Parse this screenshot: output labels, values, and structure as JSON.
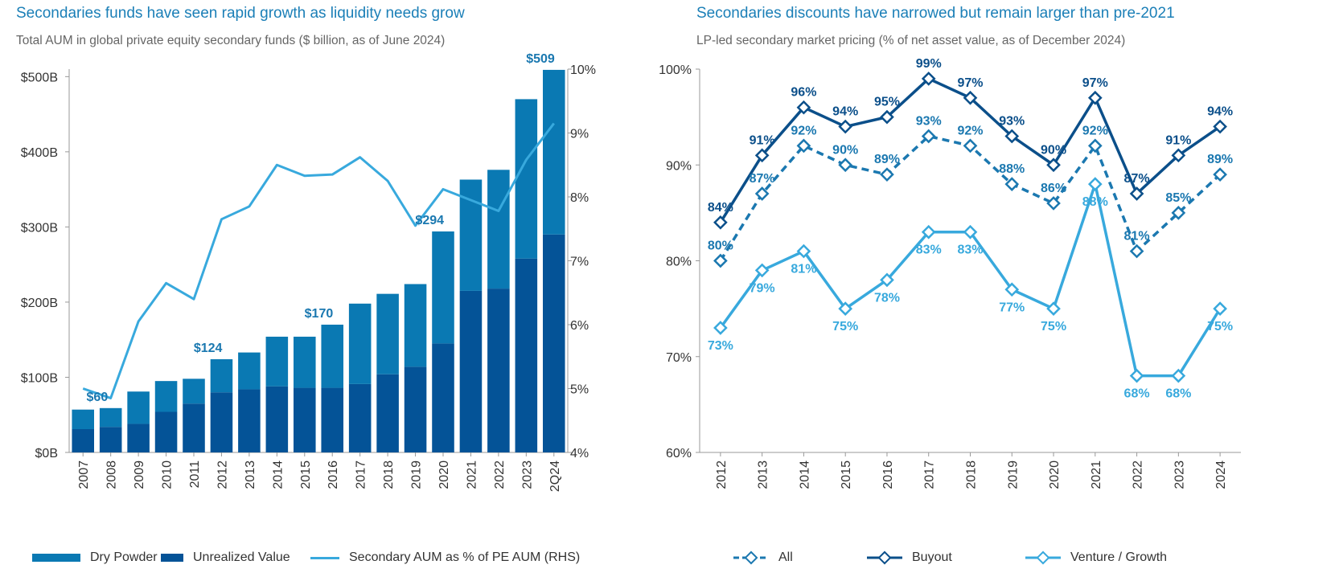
{
  "left": {
    "title": "Secondaries funds have seen rapid growth as liquidity needs grow",
    "subtitle": "Total AUM in global private equity secondary funds ($ billion, as of June 2024)",
    "legend": {
      "dry_powder": "Dry Powder",
      "unrealized": "Unrealized Value",
      "line": "Secondary AUM as % of PE AUM (RHS)"
    }
  },
  "right": {
    "title": "Secondaries discounts have narrowed but remain larger than pre-2021",
    "subtitle": "LP-led secondary market pricing (% of net asset value, as of December 2024)",
    "legend": {
      "all": "All",
      "buyout": "Buyout",
      "venture": "Venture / Growth"
    }
  },
  "colors": {
    "dry_powder": "#0a79b3",
    "unrealized": "#045397",
    "line_light": "#38a9dd",
    "all": "#1b78b0",
    "buyout": "#0b4f8a",
    "venture": "#38a9dd",
    "title": "#1b7fb7"
  },
  "chart_data": [
    {
      "type": "bar",
      "stacked": true,
      "categories": [
        "2007",
        "2008",
        "2009",
        "2010",
        "2011",
        "2012",
        "2013",
        "2014",
        "2015",
        "2016",
        "2017",
        "2018",
        "2019",
        "2020",
        "2021",
        "2022",
        "2023",
        "2Q24"
      ],
      "series": [
        {
          "name": "Unrealized Value",
          "values": [
            31,
            34,
            38,
            54,
            65,
            80,
            84,
            88,
            86,
            86,
            91,
            104,
            114,
            145,
            215,
            218,
            258,
            290
          ]
        },
        {
          "name": "Dry Powder",
          "values": [
            26,
            25,
            43,
            41,
            33,
            44,
            49,
            66,
            68,
            84,
            107,
            107,
            110,
            149,
            148,
            158,
            212,
            219
          ]
        }
      ],
      "line": {
        "name": "Secondary AUM as % of PE AUM (RHS)",
        "values": [
          5.0,
          4.85,
          6.05,
          6.65,
          6.4,
          7.65,
          7.85,
          8.5,
          8.33,
          8.35,
          8.62,
          8.25,
          7.55,
          8.12,
          7.95,
          7.78,
          8.58,
          9.15
        ]
      },
      "annotations": [
        {
          "category": "2008",
          "label": "$60"
        },
        {
          "category": "2012",
          "label": "$124"
        },
        {
          "category": "2016",
          "label": "$170"
        },
        {
          "category": "2020",
          "label": "$294"
        },
        {
          "category": "2Q24",
          "label": "$509"
        }
      ],
      "ylim": [
        0,
        510
      ],
      "yticks": [
        0,
        100,
        200,
        300,
        400,
        500
      ],
      "ytick_labels": [
        "$0B",
        "$100B",
        "$200B",
        "$300B",
        "$400B",
        "$500B"
      ],
      "y2lim": [
        4,
        10
      ],
      "y2ticks": [
        4,
        5,
        6,
        7,
        8,
        9,
        10
      ],
      "y2tick_labels": [
        "4%",
        "5%",
        "6%",
        "7%",
        "8%",
        "9%",
        "10%"
      ],
      "legend_position": "bottom"
    },
    {
      "type": "line",
      "x": [
        "2012",
        "2013",
        "2014",
        "2015",
        "2016",
        "2017",
        "2018",
        "2019",
        "2020",
        "2021",
        "2022",
        "2023",
        "2024"
      ],
      "series": [
        {
          "name": "All",
          "values": [
            80,
            87,
            92,
            90,
            89,
            93,
            92,
            88,
            86,
            92,
            81,
            85,
            89
          ]
        },
        {
          "name": "Buyout",
          "values": [
            84,
            91,
            96,
            94,
            95,
            99,
            97,
            93,
            90,
            97,
            87,
            91,
            94
          ]
        },
        {
          "name": "Venture / Growth",
          "values": [
            73,
            79,
            81,
            75,
            78,
            83,
            83,
            77,
            75,
            88,
            68,
            68,
            75
          ]
        }
      ],
      "ylim": [
        60,
        100
      ],
      "yticks": [
        60,
        70,
        80,
        90,
        100
      ],
      "ytick_labels": [
        "60%",
        "70%",
        "80%",
        "90%",
        "100%"
      ],
      "value_suffix": "%",
      "legend_position": "bottom"
    }
  ]
}
